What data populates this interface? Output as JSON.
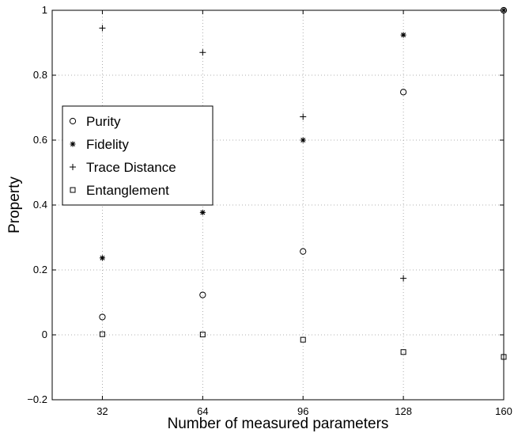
{
  "chart_data": {
    "type": "scatter",
    "title": "",
    "xlabel": "Number of measured parameters",
    "ylabel": "Property",
    "xlim": [
      16,
      160
    ],
    "ylim": [
      -0.2,
      1
    ],
    "x_ticks": [
      32,
      64,
      96,
      128,
      160
    ],
    "y_ticks": [
      -0.2,
      0,
      0.2,
      0.4,
      0.6,
      0.8,
      1
    ],
    "y_tick_labels": [
      "−0.2",
      "0",
      "0.2",
      "0.4",
      "0.6",
      "0.8",
      "1"
    ],
    "grid": true,
    "legend_position": "upper-left",
    "series": [
      {
        "name": "Purity",
        "marker": "circle",
        "color": "#000000",
        "points": [
          [
            32,
            0.055
          ],
          [
            64,
            0.123
          ],
          [
            96,
            0.257
          ],
          [
            128,
            0.748
          ],
          [
            160,
            1.0
          ]
        ]
      },
      {
        "name": "Fidelity",
        "marker": "star",
        "color": "#000000",
        "points": [
          [
            32,
            0.237
          ],
          [
            64,
            0.377
          ],
          [
            96,
            0.6
          ],
          [
            128,
            0.924
          ],
          [
            160,
            1.0
          ]
        ]
      },
      {
        "name": "Trace Distance",
        "marker": "plus",
        "color": "#000000",
        "points": [
          [
            32,
            0.945
          ],
          [
            64,
            0.87
          ],
          [
            96,
            0.672
          ],
          [
            128,
            0.174
          ],
          [
            160,
            1.0
          ]
        ]
      },
      {
        "name": "Entanglement",
        "marker": "square",
        "color": "#000000",
        "points": [
          [
            32,
            0.002
          ],
          [
            64,
            0.001
          ],
          [
            96,
            -0.015
          ],
          [
            128,
            -0.053
          ],
          [
            160,
            -0.068
          ]
        ]
      }
    ]
  }
}
